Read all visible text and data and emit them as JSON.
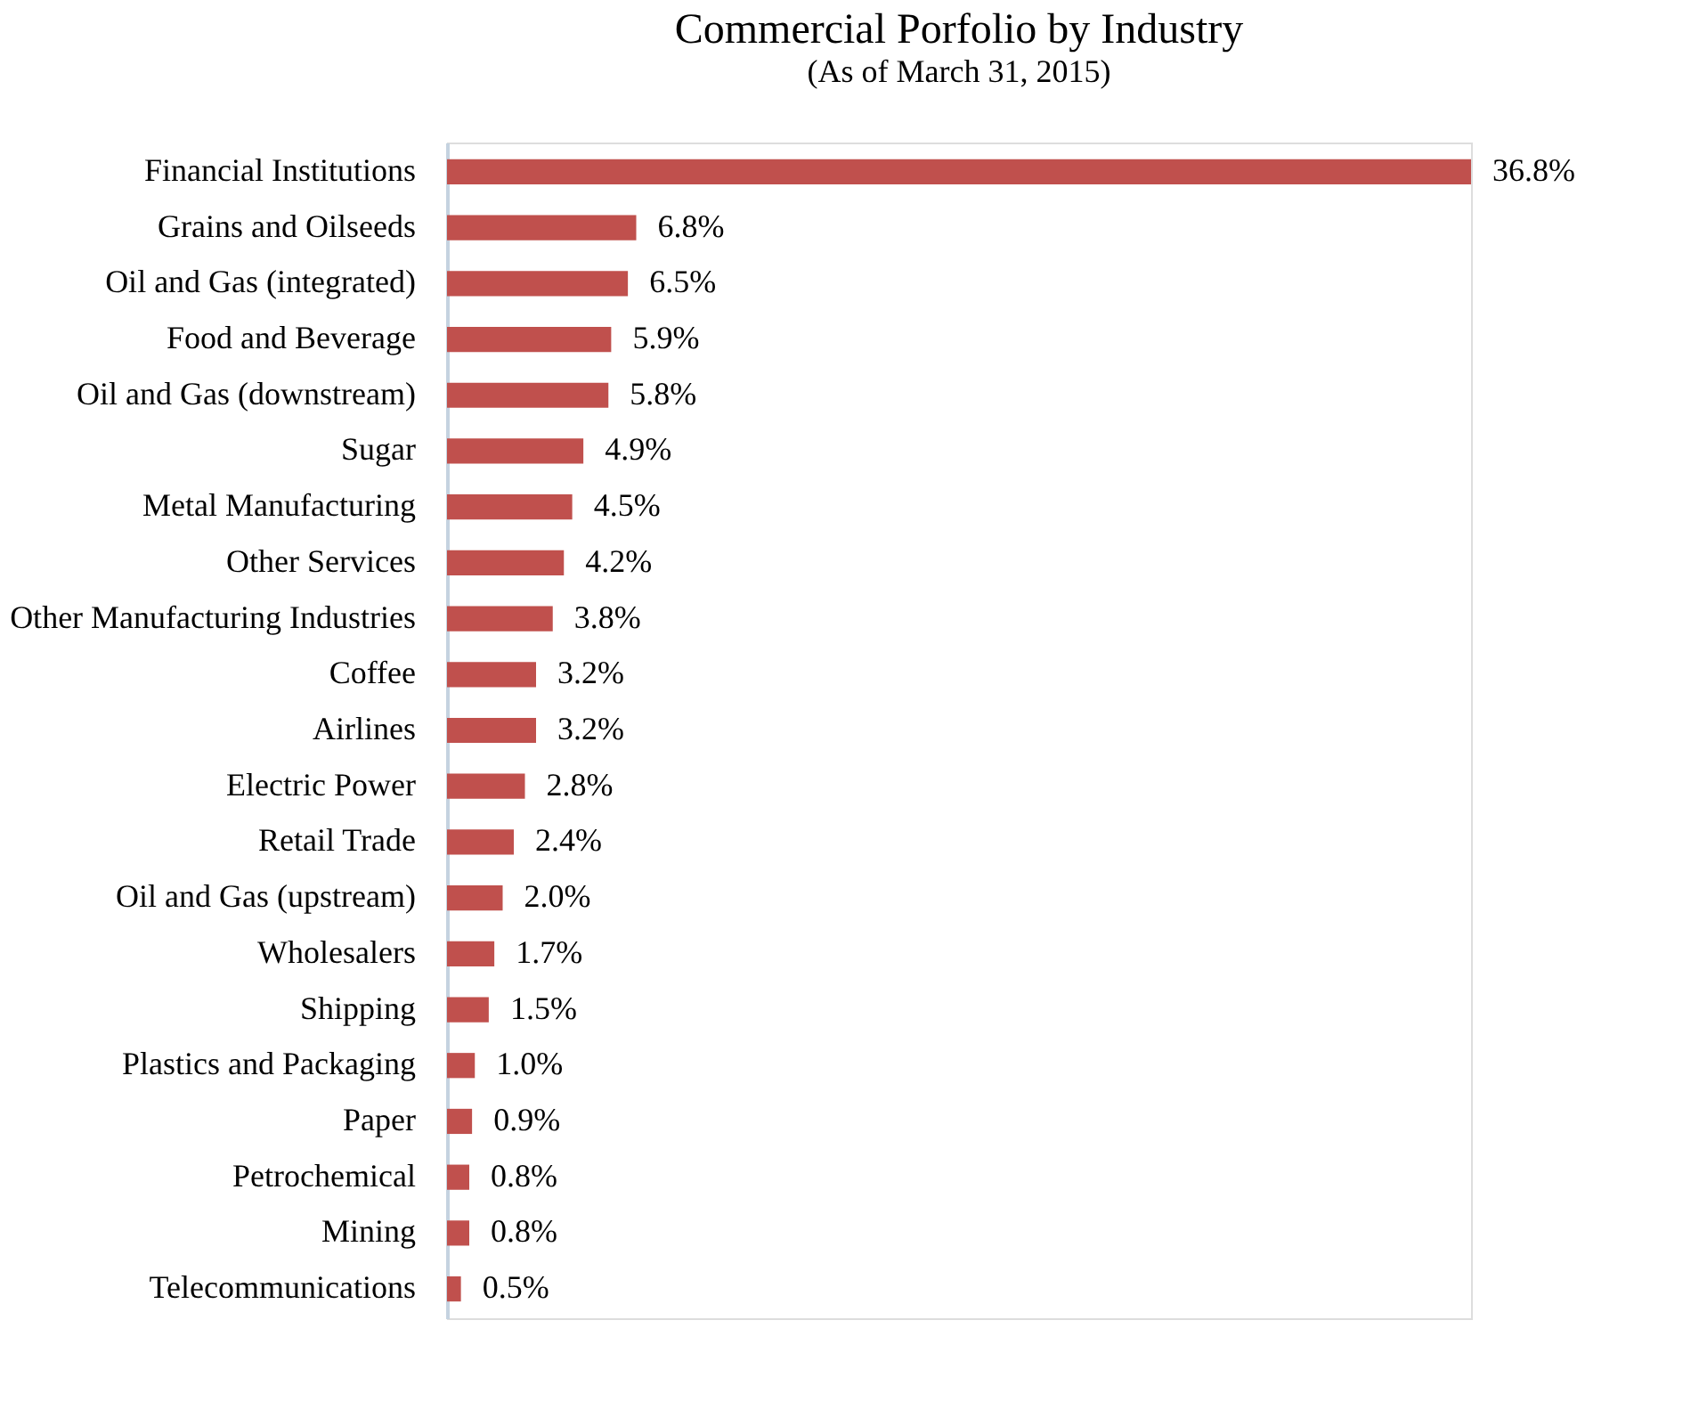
{
  "chart_data": {
    "type": "bar",
    "orientation": "horizontal",
    "title": "Commercial Porfolio by Industry",
    "subtitle": "(As of March 31, 2015)",
    "categories": [
      "Financial Institutions",
      "Grains and Oilseeds",
      "Oil and Gas (integrated)",
      "Food and Beverage",
      "Oil and Gas (downstream)",
      "Sugar",
      "Metal Manufacturing",
      "Other Services",
      "Other Manufacturing Industries",
      "Coffee",
      "Airlines",
      "Electric Power",
      "Retail Trade",
      "Oil and Gas (upstream)",
      "Wholesalers",
      "Shipping",
      "Plastics and Packaging",
      "Paper",
      "Petrochemical",
      "Mining",
      "Telecommunications"
    ],
    "values": [
      36.8,
      6.8,
      6.5,
      5.9,
      5.8,
      4.9,
      4.5,
      4.2,
      3.8,
      3.2,
      3.2,
      2.8,
      2.4,
      2.0,
      1.7,
      1.5,
      1.0,
      0.9,
      0.8,
      0.8,
      0.5
    ],
    "value_labels": [
      "36.8%",
      "6.8%",
      "6.5%",
      "5.9%",
      "5.8%",
      "4.9%",
      "4.5%",
      "4.2%",
      "3.8%",
      "3.2%",
      "3.2%",
      "2.8%",
      "2.4%",
      "2.0%",
      "1.7%",
      "1.5%",
      "1.0%",
      "0.9%",
      "0.8%",
      "0.8%",
      "0.5%"
    ],
    "color": "#c0504d",
    "tick_labels": "y"
  }
}
